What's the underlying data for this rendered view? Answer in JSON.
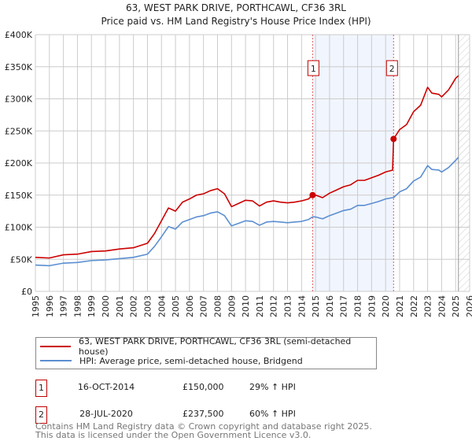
{
  "chart_data": {
    "type": "line",
    "title": "63, WEST PARK DRIVE, PORTHCAWL, CF36 3RL",
    "subtitle": "Price paid vs. HM Land Registry's House Price Index (HPI)",
    "xlabel": "",
    "ylabel": "",
    "xlim": [
      1995,
      2026
    ],
    "ylim": [
      0,
      400000
    ],
    "grid": true,
    "x_ticks": [
      "1995",
      "1996",
      "1997",
      "1998",
      "1999",
      "2000",
      "2001",
      "2002",
      "2003",
      "2004",
      "2005",
      "2006",
      "2007",
      "2008",
      "2009",
      "2010",
      "2011",
      "2012",
      "2013",
      "2014",
      "2015",
      "2016",
      "2017",
      "2018",
      "2019",
      "2020",
      "2021",
      "2022",
      "2023",
      "2024",
      "2025",
      "2026"
    ],
    "y_ticks": [
      {
        "value": 0,
        "label": "£0"
      },
      {
        "value": 50000,
        "label": "£50K"
      },
      {
        "value": 100000,
        "label": "£100K"
      },
      {
        "value": 150000,
        "label": "£150K"
      },
      {
        "value": 200000,
        "label": "£200K"
      },
      {
        "value": 250000,
        "label": "£250K"
      },
      {
        "value": 300000,
        "label": "£300K"
      },
      {
        "value": 350000,
        "label": "£350K"
      },
      {
        "value": 400000,
        "label": "£400K"
      }
    ],
    "x": [
      1995,
      1996,
      1997,
      1998,
      1999,
      2000,
      2001,
      2002,
      2003,
      2003.5,
      2004,
      2004.5,
      2005,
      2005.5,
      2006,
      2006.5,
      2007,
      2007.5,
      2008,
      2008.5,
      2009,
      2009.5,
      2010,
      2010.5,
      2011,
      2011.5,
      2012,
      2012.5,
      2013,
      2013.5,
      2014,
      2014.5,
      2014.79,
      2015,
      2015.5,
      2016,
      2016.5,
      2017,
      2017.5,
      2018,
      2018.5,
      2019,
      2019.5,
      2020,
      2020.5,
      2020.57,
      2021,
      2021.5,
      2022,
      2022.5,
      2023,
      2023.3,
      2023.8,
      2024,
      2024.5,
      2025,
      2025.2
    ],
    "series": [
      {
        "name": "63, WEST PARK DRIVE, PORTHCAWL, CF36 3RL (semi-detached house)",
        "color": "#cc0000",
        "values": [
          53,
          52,
          57,
          58,
          62,
          63,
          66,
          68,
          75,
          90,
          110,
          130,
          125,
          139,
          144,
          150,
          152,
          157,
          160,
          152,
          132,
          137,
          142,
          141,
          133,
          139,
          141,
          139,
          138,
          139,
          141,
          144,
          150,
          150,
          146,
          153,
          158,
          163,
          166,
          173,
          173,
          177,
          181,
          186,
          189,
          237.5,
          252,
          260,
          280,
          290,
          318,
          309,
          307,
          303,
          314,
          332,
          336
        ]
      },
      {
        "name": "HPI: Average price, semi-detached house, Bridgend",
        "color": "#5b8fd1",
        "values": [
          41,
          40,
          44,
          45,
          48,
          49,
          51,
          53,
          58,
          70,
          85,
          101,
          97,
          108,
          112,
          116,
          118,
          122,
          124,
          118,
          102,
          106,
          110,
          109,
          103,
          108,
          109,
          108,
          107,
          108,
          109,
          112,
          116,
          116,
          113,
          118,
          122,
          126,
          128,
          134,
          134,
          137,
          140,
          144,
          146,
          146,
          155,
          160,
          172,
          178,
          196,
          190,
          189,
          186,
          193,
          204,
          209
        ]
      }
    ],
    "value_unit": "thousands GBP",
    "legend_position": "bottom",
    "sales": [
      {
        "id": "1",
        "x": 2014.79,
        "value": 150000,
        "date": "16-OCT-2014",
        "price": "£150,000",
        "hpi": "29% ↑ HPI"
      },
      {
        "id": "2",
        "x": 2020.57,
        "value": 237500,
        "date": "28-JUL-2020",
        "price": "£237,500",
        "hpi": "60% ↑ HPI"
      }
    ],
    "forecast_start": 2025.2
  },
  "legend": {
    "property": "63, WEST PARK DRIVE, PORTHCAWL, CF36 3RL (semi-detached house)",
    "hpi": "HPI: Average price, semi-detached house, Bridgend"
  },
  "footer": {
    "line1": "Contains HM Land Registry data © Crown copyright and database right 2025.",
    "line2": "This data is licensed under the Open Government Licence v3.0."
  }
}
